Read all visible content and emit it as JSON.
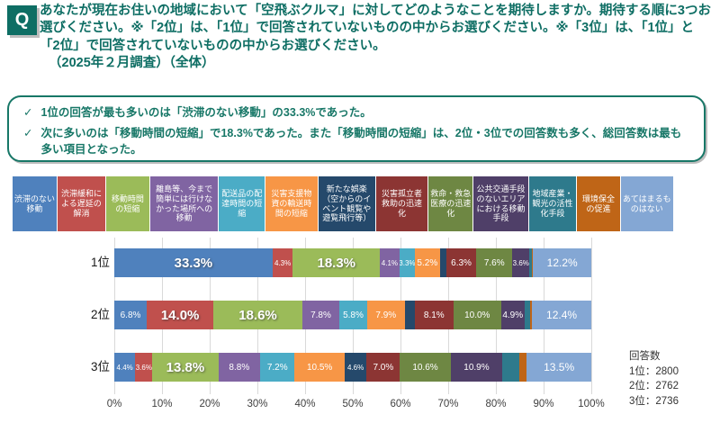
{
  "header": {
    "q_label": "Q",
    "title": "あなたが現在お住いの地域において「空飛ぶクルマ」に対してどのようなことを期待しますか。期待する順に3つお選びください。※「2位」は、「1位」で回答されていないものの中からお選びください。※「3位」は、「1位」と「2位」で回答されていないものの中からお選びください。",
    "subtitle": "（2025年２月調査）（全体）"
  },
  "summary": {
    "check_glyph": "✓",
    "bullets": [
      "1位の回答が最も多いのは「渋滞のない移動」の33.3%であった。",
      "次に多いのは「移動時間の短縮」で18.3%であった。また「移動時間の短縮」は、2位・3位での回答数も多く、総回答数は最も多い項目となった。"
    ]
  },
  "chart_data": {
    "type": "bar",
    "stacked": true,
    "orientation": "horizontal",
    "categories": [
      "1位",
      "2位",
      "3位"
    ],
    "x_axis": {
      "min": 0,
      "max": 100,
      "ticks": [
        "0%",
        "10%",
        "20%",
        "30%",
        "40%",
        "50%",
        "60%",
        "70%",
        "80%",
        "90%",
        "100%"
      ],
      "grid": true
    },
    "series": [
      {
        "name": "渋滞のない移動",
        "color": "#4F81BD",
        "values": [
          33.3,
          6.8,
          4.4
        ],
        "display_labels": [
          "33.3%",
          "6.8%",
          "4.4%"
        ]
      },
      {
        "name": "渋滞緩和による遅延の解消",
        "color": "#C0504D",
        "values": [
          4.3,
          14.0,
          3.6
        ],
        "display_labels": [
          "4.3%",
          "14.0%",
          "3.6%"
        ]
      },
      {
        "name": "移動時間の短縮",
        "color": "#9BBB59",
        "values": [
          18.3,
          18.6,
          13.8
        ],
        "display_labels": [
          "18.3%",
          "18.6%",
          "13.8%"
        ]
      },
      {
        "name": "離島等、今まで簡単には行けなかった場所への移動",
        "color": "#8064A2",
        "values": [
          4.1,
          7.8,
          8.8
        ],
        "display_labels": [
          "4.1%",
          "7.8%",
          "8.8%"
        ]
      },
      {
        "name": "配送品の配達時間の短縮",
        "color": "#4BACC6",
        "values": [
          3.3,
          5.8,
          7.2
        ],
        "display_labels": [
          "3.3%",
          "5.8%",
          "7.2%"
        ]
      },
      {
        "name": "災害支援物資の輸送時間の短縮",
        "color": "#F79646",
        "values": [
          5.2,
          7.9,
          10.5
        ],
        "display_labels": [
          "5.2%",
          "7.9%",
          "10.5%"
        ]
      },
      {
        "name": "新たな娯楽（空からのイベント観覧や遊覧飛行等）",
        "color": "#25496B",
        "values": [
          1.4,
          2.1,
          4.6
        ],
        "display_labels": [
          "",
          "",
          "4.6%"
        ]
      },
      {
        "name": "災害孤立者救助の迅速化",
        "color": "#8C3533",
        "values": [
          6.3,
          8.1,
          7.0
        ],
        "display_labels": [
          "6.3%",
          "8.1%",
          "7.0%"
        ]
      },
      {
        "name": "救命・救急医療の迅速化",
        "color": "#6E8743",
        "values": [
          7.6,
          10.0,
          10.6
        ],
        "display_labels": [
          "7.6%",
          "10.0%",
          "10.6%"
        ]
      },
      {
        "name": "公共交通手段のないエリアにおける移動手段",
        "color": "#4F3F68",
        "values": [
          3.6,
          4.9,
          10.9
        ],
        "display_labels": [
          "3.6%",
          "4.9%",
          "10.9%"
        ]
      },
      {
        "name": "地域産業・観光の活性化手段",
        "color": "#2E7A8C",
        "values": [
          0.5,
          1.1,
          3.6
        ],
        "display_labels": [
          "",
          "",
          ""
        ]
      },
      {
        "name": "環境保全の促進",
        "color": "#BF6517",
        "values": [
          0.3,
          0.5,
          1.5
        ],
        "display_labels": [
          "",
          "",
          ""
        ]
      },
      {
        "name": "あてはまるものはない",
        "color": "#84A7D4",
        "values": [
          12.2,
          12.4,
          13.5
        ],
        "display_labels": [
          "12.2%",
          "12.4%",
          "13.5%"
        ]
      }
    ],
    "notes": {
      "response_counts_title": "回答数",
      "response_counts": [
        "1位：2800",
        "2位：2762",
        "3位：2736"
      ]
    }
  }
}
